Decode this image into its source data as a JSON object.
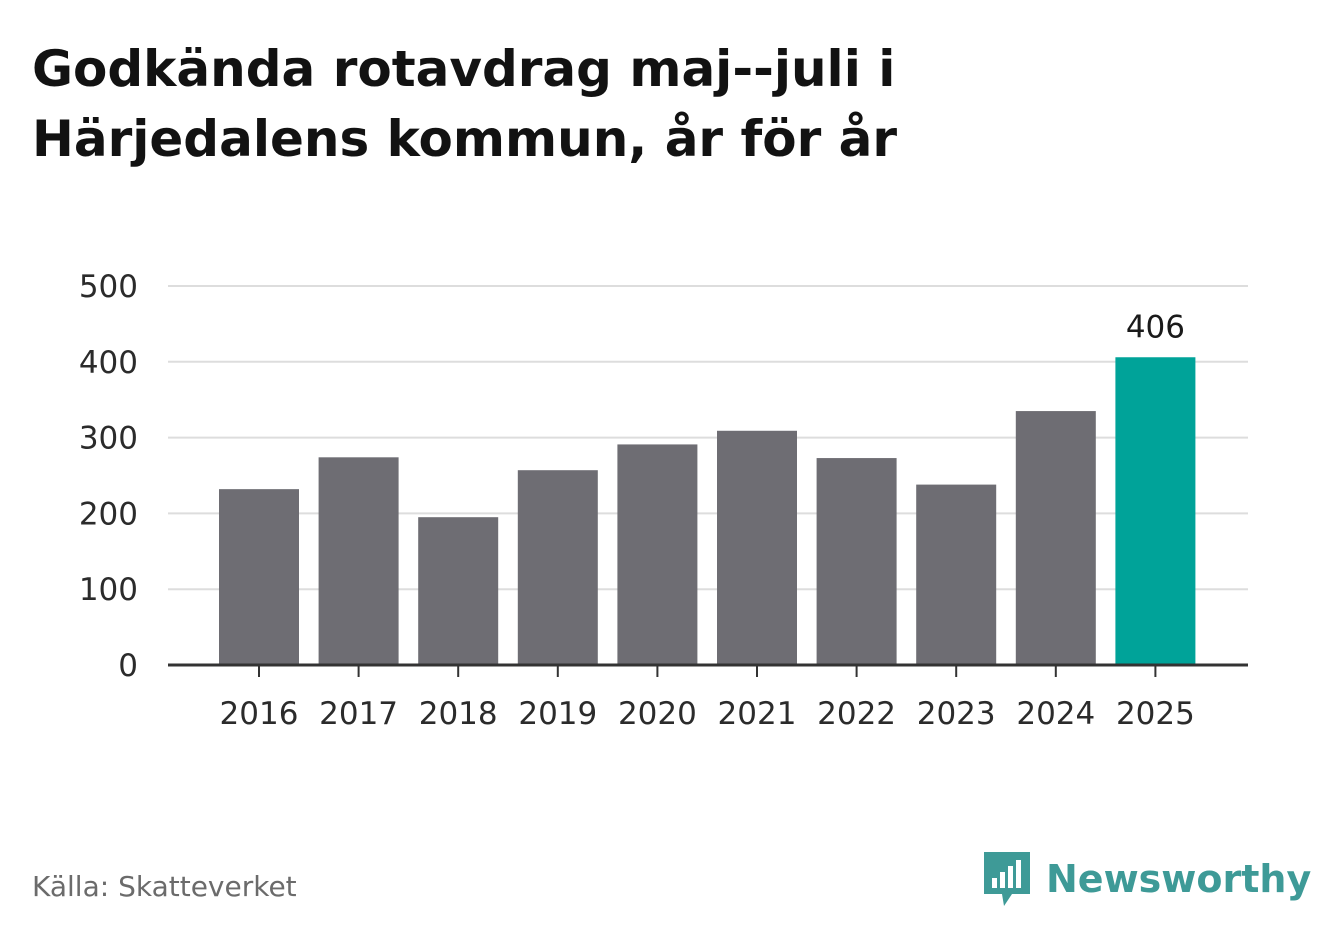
{
  "title": "Godkända rotavdrag maj--juli i Härjedalens kommun, år för år",
  "source": "Källa: Skatteverket",
  "brand": {
    "name": "Newsworthy",
    "color": "#3e9a97"
  },
  "colors": {
    "bar": "#6e6d73",
    "highlight": "#00a399",
    "grid": "#dddddd",
    "axis": "#333333"
  },
  "chart_data": {
    "type": "bar",
    "categories": [
      "2016",
      "2017",
      "2018",
      "2019",
      "2020",
      "2021",
      "2022",
      "2023",
      "2024",
      "2025"
    ],
    "values": [
      232,
      274,
      195,
      257,
      291,
      309,
      273,
      238,
      335,
      406
    ],
    "yticks": [
      0,
      100,
      200,
      300,
      400,
      500
    ],
    "ylim": [
      0,
      500
    ],
    "highlight_index": 9,
    "data_labels": {
      "9": "406"
    },
    "grid": true
  }
}
